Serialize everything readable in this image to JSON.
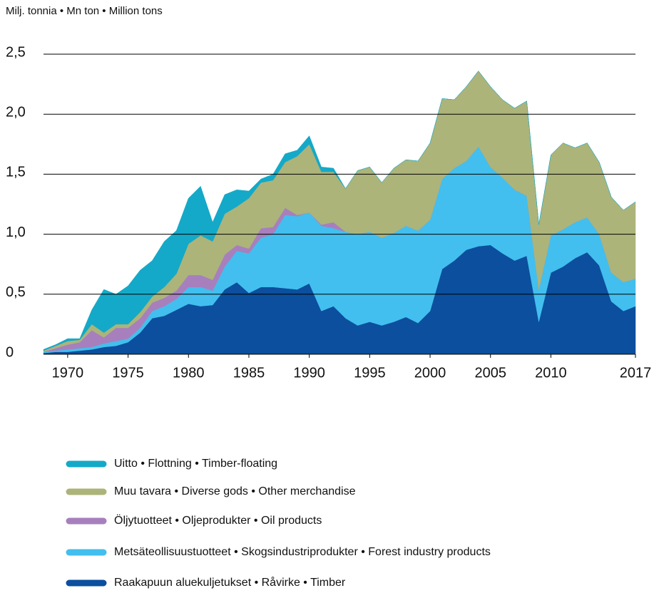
{
  "chart_data": {
    "type": "stacked_area",
    "title": "Milj. tonnia • Mn ton • Million tons",
    "x": [
      1968,
      1969,
      1970,
      1971,
      1972,
      1973,
      1974,
      1975,
      1976,
      1977,
      1978,
      1979,
      1980,
      1981,
      1982,
      1983,
      1984,
      1985,
      1986,
      1987,
      1988,
      1989,
      1990,
      1991,
      1992,
      1993,
      1994,
      1995,
      1996,
      1997,
      1998,
      1999,
      2000,
      2001,
      2002,
      2003,
      2004,
      2005,
      2006,
      2007,
      2008,
      2009,
      2010,
      2011,
      2012,
      2013,
      2014,
      2015,
      2016,
      2017
    ],
    "xlim": [
      1968,
      2017
    ],
    "xticks": [
      1970,
      1975,
      1980,
      1985,
      1990,
      1995,
      2000,
      2005,
      2010,
      2017
    ],
    "ylim": [
      0,
      2.5
    ],
    "yticks": [
      0,
      {
        "value": 0.5,
        "label": "0,5"
      },
      {
        "value": 1,
        "label": "1,0"
      },
      {
        "value": 1.5,
        "label": "1,5"
      },
      {
        "value": 2,
        "label": "2,0"
      },
      {
        "value": 2.5,
        "label": "2,5"
      }
    ],
    "grid": true,
    "series": [
      {
        "name": "Raakapuun aluekuljetukset • Råvirke • Timber",
        "color": "#0b4f9e",
        "values": [
          0.01,
          0.02,
          0.02,
          0.03,
          0.04,
          0.06,
          0.07,
          0.1,
          0.18,
          0.3,
          0.32,
          0.37,
          0.42,
          0.4,
          0.41,
          0.54,
          0.6,
          0.51,
          0.56,
          0.56,
          0.55,
          0.54,
          0.59,
          0.36,
          0.4,
          0.3,
          0.24,
          0.27,
          0.24,
          0.27,
          0.31,
          0.26,
          0.36,
          0.71,
          0.78,
          0.87,
          0.9,
          0.91,
          0.84,
          0.78,
          0.82,
          0.27,
          0.68,
          0.73,
          0.8,
          0.85,
          0.74,
          0.44,
          0.36,
          0.4
        ]
      },
      {
        "name": "Metsäteollisuustuotteet • Skogsindustriprodukter • Forest industry products",
        "color": "#42bfee",
        "values": [
          0.01,
          0.01,
          0.02,
          0.02,
          0.02,
          0.03,
          0.04,
          0.03,
          0.04,
          0.06,
          0.08,
          0.09,
          0.14,
          0.16,
          0.12,
          0.19,
          0.26,
          0.33,
          0.41,
          0.44,
          0.61,
          0.61,
          0.59,
          0.71,
          0.65,
          0.72,
          0.76,
          0.75,
          0.73,
          0.74,
          0.76,
          0.77,
          0.76,
          0.75,
          0.77,
          0.74,
          0.83,
          0.65,
          0.63,
          0.59,
          0.5,
          0.27,
          0.31,
          0.31,
          0.3,
          0.29,
          0.26,
          0.24,
          0.24,
          0.23
        ]
      },
      {
        "name": "Öljytuotteet • Oljeprodukter • Oil products",
        "color": "#a77fbd",
        "values": [
          0,
          0.02,
          0.04,
          0.05,
          0.14,
          0.05,
          0.11,
          0.09,
          0.08,
          0.07,
          0.07,
          0.07,
          0.1,
          0.1,
          0.09,
          0.1,
          0.05,
          0.04,
          0.08,
          0.06,
          0.06,
          0.01,
          0,
          0.01,
          0.05,
          0,
          0,
          0,
          0,
          0,
          0,
          0,
          0,
          0,
          0,
          0,
          0,
          0,
          0,
          0,
          0,
          0,
          0,
          0,
          0,
          0,
          0,
          0,
          0,
          0
        ]
      },
      {
        "name": "Muu tavara • Diverse gods • Other merchandise",
        "color": "#acb47a",
        "values": [
          0.01,
          0.02,
          0.03,
          0.02,
          0.05,
          0.04,
          0.03,
          0.03,
          0.05,
          0.05,
          0.09,
          0.14,
          0.26,
          0.33,
          0.32,
          0.34,
          0.32,
          0.42,
          0.38,
          0.39,
          0.38,
          0.49,
          0.57,
          0.44,
          0.42,
          0.36,
          0.53,
          0.54,
          0.46,
          0.54,
          0.55,
          0.58,
          0.64,
          0.67,
          0.57,
          0.62,
          0.63,
          0.67,
          0.65,
          0.68,
          0.79,
          0.54,
          0.67,
          0.72,
          0.62,
          0.62,
          0.6,
          0.63,
          0.6,
          0.64
        ]
      },
      {
        "name": "Uitto • Flottning • Timber-floating",
        "color": "#14a9c8",
        "values": [
          0.01,
          0.01,
          0.02,
          0.01,
          0.12,
          0.36,
          0.25,
          0.32,
          0.35,
          0.3,
          0.38,
          0.36,
          0.38,
          0.41,
          0.16,
          0.16,
          0.14,
          0.06,
          0.03,
          0.05,
          0.07,
          0.05,
          0.07,
          0.04,
          0.03,
          0,
          0,
          0,
          0,
          0,
          0,
          0,
          0,
          0,
          0,
          0,
          0,
          0,
          0,
          0,
          0,
          0,
          0,
          0,
          0,
          0,
          0,
          0,
          0,
          0
        ]
      }
    ]
  }
}
